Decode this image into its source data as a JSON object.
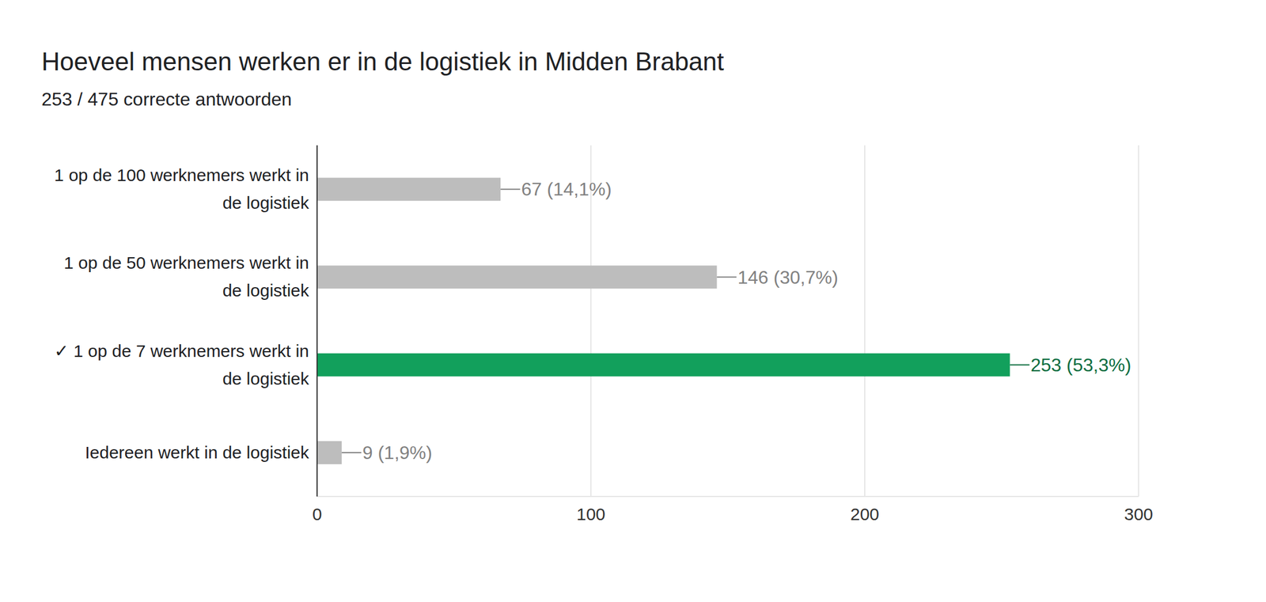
{
  "chart_data": {
    "type": "bar",
    "orientation": "horizontal",
    "title": "Hoeveel mensen werken er in de logistiek in Midden Brabant",
    "subtitle": "253 / 475 correcte antwoorden",
    "categories": [
      "1 op de 100 werknemers werkt in de logistiek",
      "1 op de 50 werknemers werkt in de logistiek",
      "✓ 1 op de 7 werknemers werkt in de logistiek",
      "Iedereen werkt in de logistiek"
    ],
    "values": [
      67,
      146,
      253,
      9
    ],
    "value_labels": [
      "67 (14,1%)",
      "146 (30,7%)",
      "253 (53,3%)",
      "9 (1,9%)"
    ],
    "colors": [
      "#bdbdbd",
      "#bdbdbd",
      "#12a05c",
      "#bdbdbd"
    ],
    "xlim": [
      0,
      300
    ],
    "xticks": [
      0,
      100,
      200,
      300
    ],
    "grid": true,
    "data_labels": true
  }
}
